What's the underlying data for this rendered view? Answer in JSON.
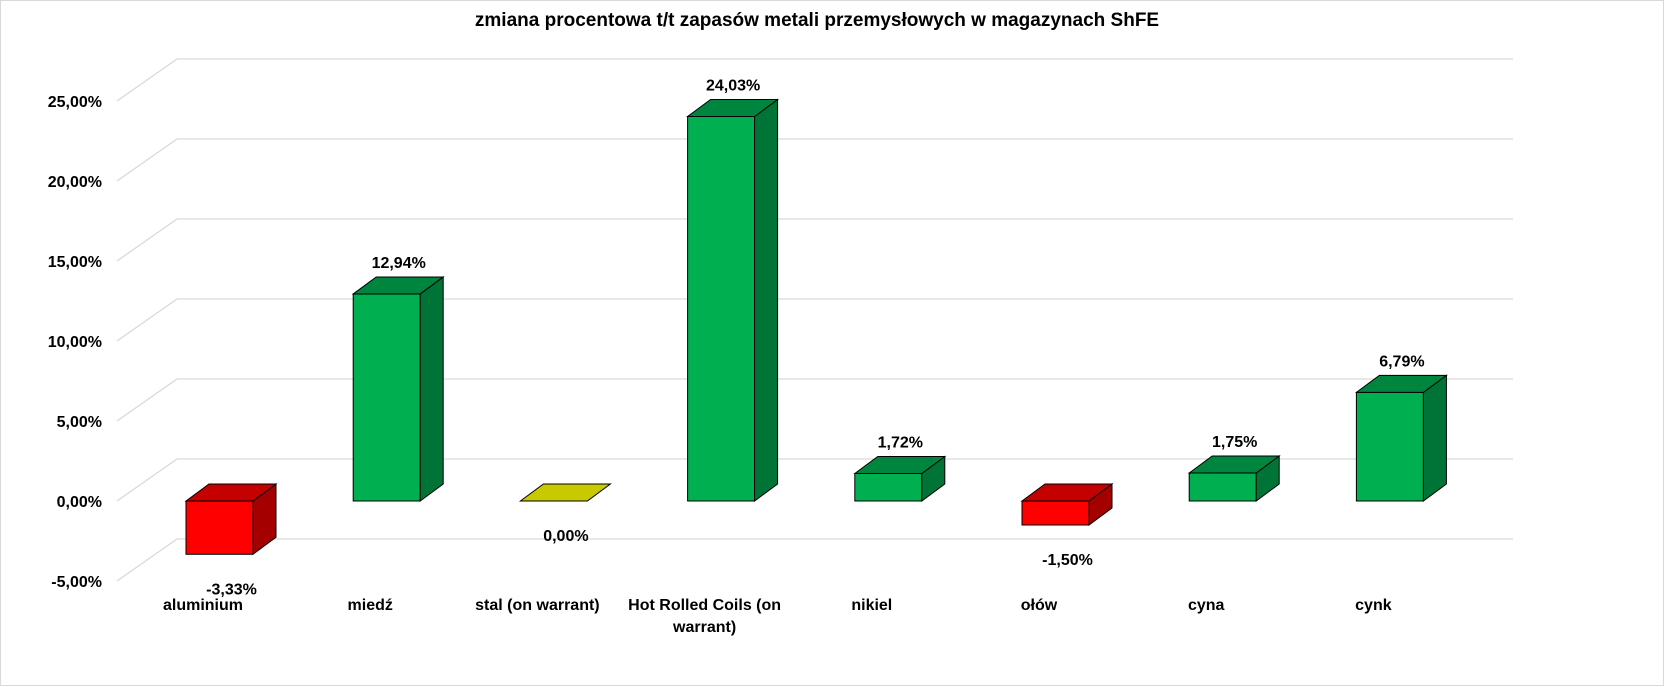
{
  "chart_data": {
    "type": "bar",
    "title": "zmiana procentowa t/t zapasów metali przemysłowych w magazynach ShFE",
    "categories": [
      [
        "aluminium"
      ],
      [
        "miedź"
      ],
      [
        "stal (on warrant)"
      ],
      [
        "Hot Rolled Coils (on",
        "warrant)"
      ],
      [
        "nikiel"
      ],
      [
        "ołów"
      ],
      [
        "cyna"
      ],
      [
        "cynk"
      ]
    ],
    "values": [
      -3.33,
      12.94,
      0.0,
      24.03,
      1.72,
      -1.5,
      1.75,
      6.79
    ],
    "value_labels": [
      "-3,33%",
      "12,94%",
      "0,00%",
      "24,03%",
      "1,72%",
      "-1,50%",
      "1,75%",
      "6,79%"
    ],
    "ylim": [
      -5,
      25
    ],
    "yticks": [
      -5,
      0,
      5,
      10,
      15,
      20,
      25
    ],
    "ytick_labels": [
      "-5,00%",
      "0,00%",
      "5,00%",
      "10,00%",
      "15,00%",
      "20,00%",
      "25,00%"
    ],
    "xlabel": "",
    "ylabel": "",
    "grid": true,
    "legend": "none",
    "colors": {
      "positive_front": "#00b050",
      "positive_side": "#007436",
      "positive_top": "#00853f",
      "negative_front": "#ff0000",
      "negative_side": "#a50000",
      "negative_top": "#c40000",
      "zero_top": "#c9c900",
      "gridline": "#d9d9d9",
      "edge": "#000000"
    }
  }
}
